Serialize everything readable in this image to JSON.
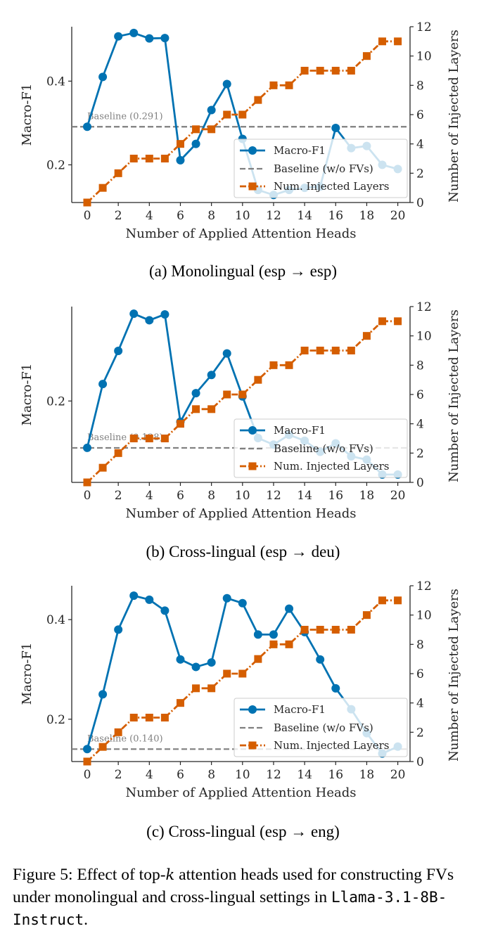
{
  "colors": {
    "f1": "#0072B2",
    "layers": "#D55E00",
    "baseline": "#7f7f7f"
  },
  "chart_data": [
    {
      "type": "line",
      "caption": "(a) Monolingual (esp → esp)",
      "xlabel": "Number of Applied Attention Heads",
      "ylabel": "Macro-F1",
      "y2label": "Number of Injected Layers",
      "x": [
        0,
        1,
        2,
        3,
        4,
        5,
        6,
        7,
        8,
        9,
        10,
        11,
        12,
        13,
        14,
        15,
        16,
        17,
        18,
        19,
        20
      ],
      "xticks": [
        "0",
        "2",
        "4",
        "6",
        "8",
        "10",
        "12",
        "14",
        "16",
        "18",
        "20"
      ],
      "yticks": [
        {
          "v": 0.2,
          "t": "0.2"
        },
        {
          "v": 0.4,
          "t": "0.4"
        }
      ],
      "ylim": [
        0.11,
        0.53
      ],
      "y2ticks": [
        "0",
        "2",
        "4",
        "6",
        "8",
        "10",
        "12"
      ],
      "y2lim": [
        0,
        12
      ],
      "baseline_value": 0.291,
      "baseline_label": "Baseline (0.291)",
      "series": [
        {
          "name": "Macro-F1",
          "axis": "left",
          "values": [
            0.291,
            0.41,
            0.507,
            0.515,
            0.502,
            0.503,
            0.211,
            0.25,
            0.331,
            0.393,
            0.262,
            0.14,
            0.128,
            0.14,
            0.145,
            0.148,
            0.288,
            0.24,
            0.245,
            0.2,
            0.19
          ]
        },
        {
          "name": "Num. Injected Layers",
          "axis": "right",
          "values": [
            0,
            1,
            2,
            3,
            3,
            3,
            4,
            5,
            5,
            6,
            6,
            7,
            8,
            8,
            9,
            9,
            9,
            9,
            10,
            11,
            11
          ]
        }
      ],
      "legend": [
        "Macro-F1",
        "Baseline (w/o FVs)",
        "Num. Injected Layers"
      ],
      "legend_loc": "lower-right"
    },
    {
      "type": "line",
      "caption": "(b) Cross-lingual (esp → deu)",
      "xlabel": "Number of Applied Attention Heads",
      "ylabel": "Macro-F1",
      "y2label": "Number of Injected Layers",
      "x": [
        0,
        1,
        2,
        3,
        4,
        5,
        6,
        7,
        8,
        9,
        10,
        11,
        12,
        13,
        14,
        15,
        16,
        17,
        18,
        19,
        20
      ],
      "xticks": [
        "0",
        "2",
        "4",
        "6",
        "8",
        "10",
        "12",
        "14",
        "16",
        "18",
        "20"
      ],
      "yticks": [
        {
          "v": 0.2,
          "t": "0.2"
        }
      ],
      "ylim": [
        0.075,
        0.345
      ],
      "y2ticks": [
        "0",
        "2",
        "4",
        "6",
        "8",
        "10",
        "12"
      ],
      "y2lim": [
        0,
        12
      ],
      "baseline_value": 0.128,
      "baseline_label": "Baseline (0.128)",
      "series": [
        {
          "name": "Macro-F1",
          "axis": "left",
          "values": [
            0.128,
            0.226,
            0.277,
            0.334,
            0.324,
            0.333,
            0.168,
            0.212,
            0.24,
            0.273,
            0.207,
            0.143,
            0.133,
            0.148,
            0.139,
            0.122,
            0.135,
            0.115,
            0.11,
            0.087,
            0.087
          ]
        },
        {
          "name": "Num. Injected Layers",
          "axis": "right",
          "values": [
            0,
            1,
            2,
            3,
            3,
            3,
            4,
            5,
            5,
            6,
            6,
            7,
            8,
            8,
            9,
            9,
            9,
            9,
            10,
            11,
            11
          ]
        }
      ],
      "legend": [
        "Macro-F1",
        "Baseline (w/o FVs)",
        "Num. Injected Layers"
      ],
      "legend_loc": "lower-right"
    },
    {
      "type": "line",
      "caption": "(c) Cross-lingual (esp → eng)",
      "xlabel": "Number of Applied Attention Heads",
      "ylabel": "Macro-F1",
      "y2label": "Number of Injected Layers",
      "x": [
        0,
        1,
        2,
        3,
        4,
        5,
        6,
        7,
        8,
        9,
        10,
        11,
        12,
        13,
        14,
        15,
        16,
        17,
        18,
        19,
        20
      ],
      "xticks": [
        "0",
        "2",
        "4",
        "6",
        "8",
        "10",
        "12",
        "14",
        "16",
        "18",
        "20"
      ],
      "yticks": [
        {
          "v": 0.2,
          "t": "0.2"
        },
        {
          "v": 0.4,
          "t": "0.4"
        }
      ],
      "ylim": [
        0.115,
        0.468
      ],
      "y2ticks": [
        "0",
        "2",
        "4",
        "6",
        "8",
        "10",
        "12"
      ],
      "y2lim": [
        0,
        12
      ],
      "baseline_value": 0.14,
      "baseline_label": "Baseline (0.140)",
      "series": [
        {
          "name": "Macro-F1",
          "axis": "left",
          "values": [
            0.14,
            0.25,
            0.38,
            0.448,
            0.44,
            0.418,
            0.32,
            0.305,
            0.314,
            0.443,
            0.433,
            0.37,
            0.37,
            0.422,
            0.375,
            0.32,
            0.262,
            0.22,
            0.172,
            0.131,
            0.145
          ]
        },
        {
          "name": "Num. Injected Layers",
          "axis": "right",
          "values": [
            0,
            1,
            2,
            3,
            3,
            3,
            4,
            5,
            5,
            6,
            6,
            7,
            8,
            8,
            9,
            9,
            9,
            9,
            10,
            11,
            11
          ]
        }
      ],
      "legend": [
        "Macro-F1",
        "Baseline (w/o FVs)",
        "Num. Injected Layers"
      ],
      "legend_loc": "lower-right"
    }
  ],
  "figure_caption": {
    "part1": "Figure 5: Effect of top-",
    "k": "k",
    "part2": " attention heads used for constructing FVs under monolingual and cross-lingual settings in ",
    "model": "Llama-3.1-8B-Instruct",
    "part3": "."
  }
}
